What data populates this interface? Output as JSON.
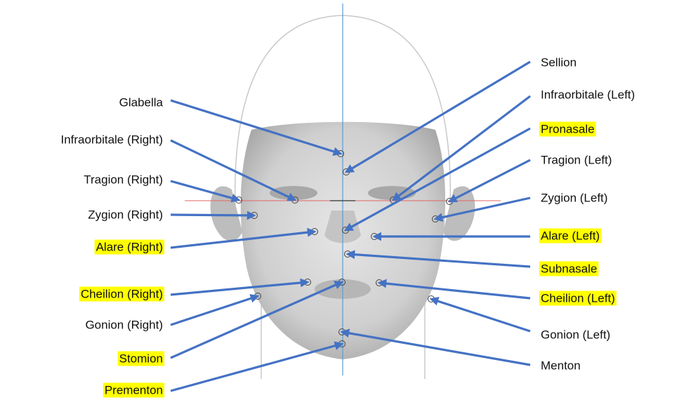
{
  "landmarks": [
    {
      "label": "Glabella",
      "highlighted": false
    },
    {
      "label": "Infraorbitale (Right)",
      "highlighted": false
    },
    {
      "label": "Tragion (Right)",
      "highlighted": false
    },
    {
      "label": "Zygion (Right)",
      "highlighted": false
    },
    {
      "label": "Alare (Right)",
      "highlighted": true
    },
    {
      "label": "Cheilion (Right)",
      "highlighted": true
    },
    {
      "label": "Gonion (Right)",
      "highlighted": false
    },
    {
      "label": "Stomion",
      "highlighted": true
    },
    {
      "label": "Prementon",
      "highlighted": true
    },
    {
      "label": "Sellion",
      "highlighted": false
    },
    {
      "label": "Infraorbitale (Left)",
      "highlighted": false
    },
    {
      "label": "Pronasale",
      "highlighted": true
    },
    {
      "label": "Tragion (Left)",
      "highlighted": false
    },
    {
      "label": "Zygion (Left)",
      "highlighted": false
    },
    {
      "label": "Alare (Left)",
      "highlighted": true
    },
    {
      "label": "Subnasale",
      "highlighted": true
    },
    {
      "label": "Cheilion (Left)",
      "highlighted": true
    },
    {
      "label": "Gonion (Left)",
      "highlighted": false
    },
    {
      "label": "Menton",
      "highlighted": false
    }
  ]
}
